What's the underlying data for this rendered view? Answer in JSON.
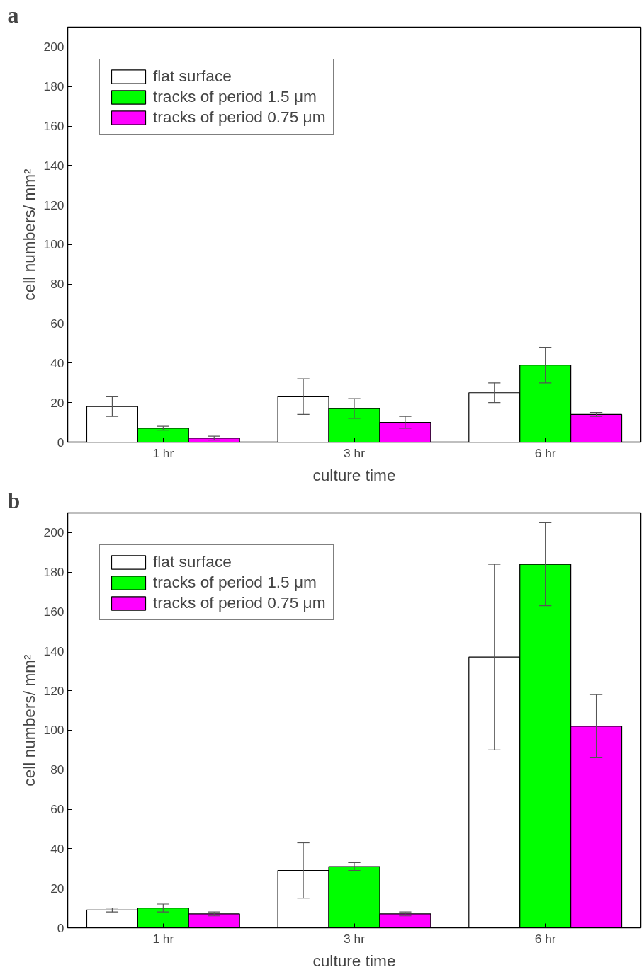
{
  "chart_data": [
    {
      "type": "bar",
      "annotations": [
        "a"
      ],
      "xlabel": "culture time",
      "ylabel": "cell numbers/ mm²",
      "categories": [
        "1 hr",
        "3 hr",
        "6 hr"
      ],
      "ylim": [
        0,
        210
      ],
      "yticks": [
        0,
        20,
        40,
        60,
        80,
        100,
        120,
        140,
        160,
        180,
        200
      ],
      "legend": "top left",
      "grid": false,
      "series": [
        {
          "name": "flat surface",
          "color": "#ffffff",
          "values": [
            18,
            23,
            25
          ],
          "errors": [
            [
              13,
              23
            ],
            [
              14,
              32
            ],
            [
              20,
              30
            ]
          ]
        },
        {
          "name": "tracks of period 1.5 μm",
          "color": "#00ff00",
          "values": [
            7,
            17,
            39
          ],
          "errors": [
            [
              6,
              8
            ],
            [
              12,
              22
            ],
            [
              30,
              48
            ]
          ]
        },
        {
          "name": "tracks of period 0.75 μm",
          "color": "#ff00ff",
          "values": [
            2,
            10,
            14
          ],
          "errors": [
            [
              1,
              3
            ],
            [
              7,
              13
            ],
            [
              13,
              15
            ]
          ]
        }
      ]
    },
    {
      "type": "bar",
      "annotations": [
        "b"
      ],
      "xlabel": "culture time",
      "ylabel": "cell numbers/ mm²",
      "categories": [
        "1 hr",
        "3 hr",
        "6 hr"
      ],
      "ylim": [
        0,
        210
      ],
      "yticks": [
        0,
        20,
        40,
        60,
        80,
        100,
        120,
        140,
        160,
        180,
        200
      ],
      "legend": "top left",
      "grid": false,
      "series": [
        {
          "name": "flat surface",
          "color": "#ffffff",
          "values": [
            9,
            29,
            137
          ],
          "errors": [
            [
              8,
              10
            ],
            [
              15,
              43
            ],
            [
              90,
              184
            ]
          ]
        },
        {
          "name": "tracks of period 1.5 μm",
          "color": "#00ff00",
          "values": [
            10,
            31,
            184
          ],
          "errors": [
            [
              8,
              12
            ],
            [
              29,
              33
            ],
            [
              163,
              205
            ]
          ]
        },
        {
          "name": "tracks of period 0.75 μm",
          "color": "#ff00ff",
          "values": [
            7,
            7,
            102
          ],
          "errors": [
            [
              6,
              8
            ],
            [
              6,
              8
            ],
            [
              86,
              118
            ]
          ]
        }
      ]
    }
  ]
}
